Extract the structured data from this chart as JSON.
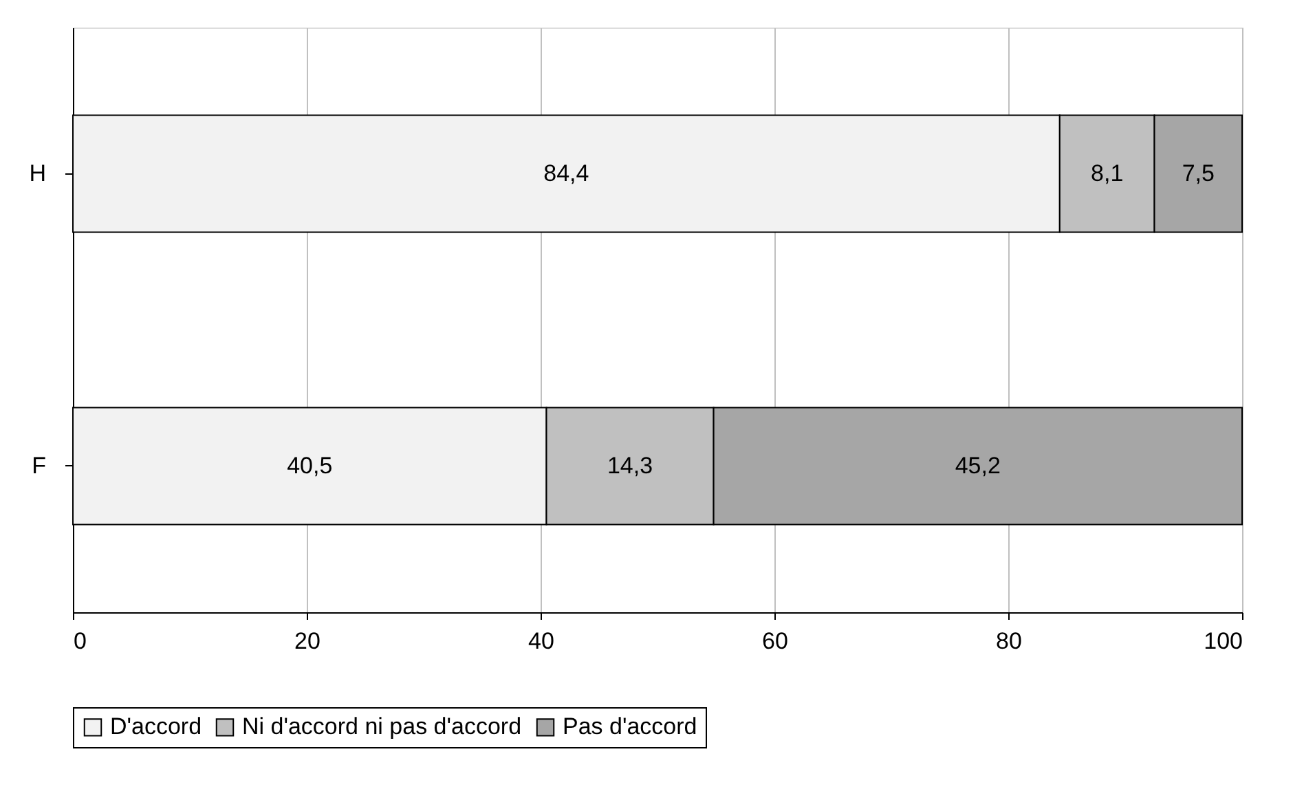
{
  "chart_data": {
    "type": "bar",
    "orientation": "horizontal",
    "stacked": true,
    "categories": [
      "H",
      "F"
    ],
    "series": [
      {
        "name": "D'accord",
        "color": "#f2f2f2",
        "values": [
          84.4,
          40.5
        ],
        "value_labels": [
          "84,4",
          "40,5"
        ]
      },
      {
        "name": "Ni d'accord ni pas d'accord",
        "color": "#c0c0c0",
        "values": [
          8.1,
          14.3
        ],
        "value_labels": [
          "8,1",
          "14,3"
        ]
      },
      {
        "name": "Pas d'accord",
        "color": "#a6a6a6",
        "values": [
          7.5,
          45.2
        ],
        "value_labels": [
          "7,5",
          "45,2"
        ]
      }
    ],
    "xlim": [
      0,
      100
    ],
    "xticks": [
      0,
      20,
      40,
      60,
      80,
      100
    ],
    "grid": "x",
    "legend": "bottom"
  }
}
